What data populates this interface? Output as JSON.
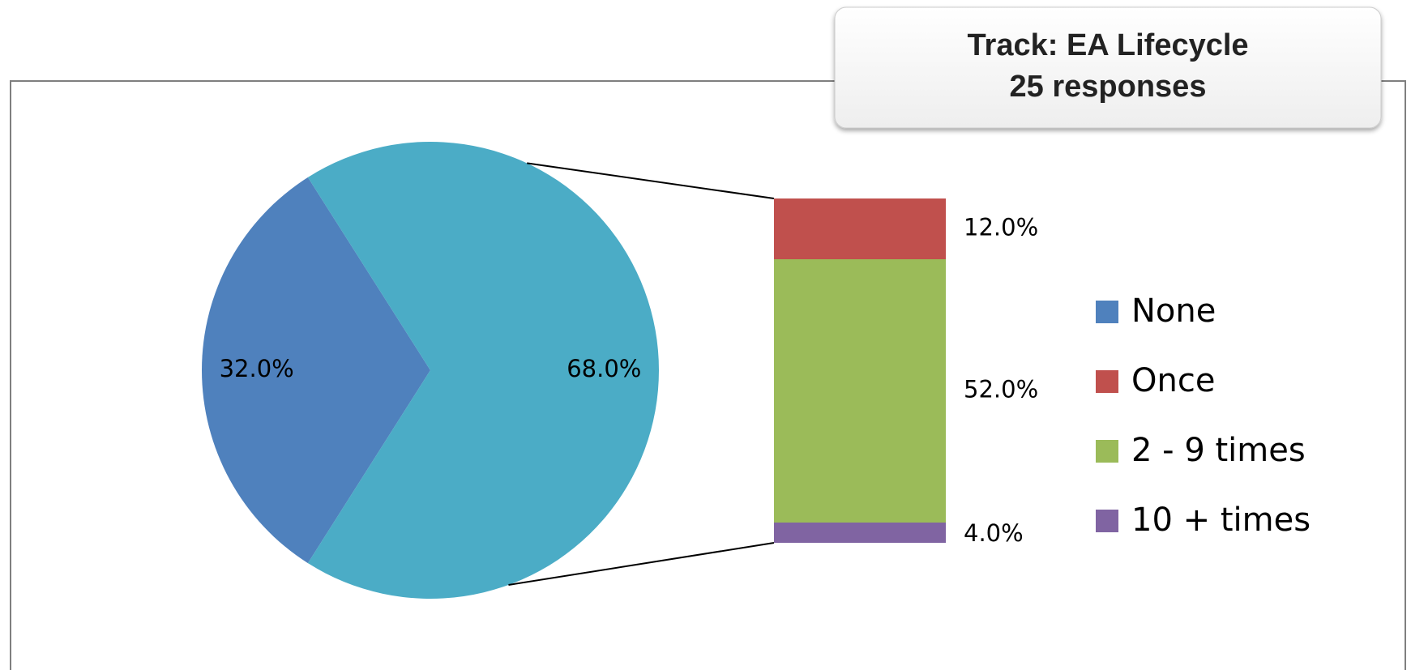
{
  "chart_data": {
    "type": "pie",
    "title": "Track: EA Lifecycle",
    "subtitle": "25 responses",
    "categories": [
      "None",
      "Once",
      "2 - 9 times",
      "10 + times"
    ],
    "values": [
      32.0,
      12.0,
      52.0,
      4.0
    ],
    "value_labels": [
      "32.0%",
      "12.0%",
      "52.0%",
      "4.0%"
    ],
    "colors": [
      "#4f81bd",
      "#c0504d",
      "#9bbb59",
      "#8064a2"
    ],
    "other_value": 68.0,
    "other_label": "68.0%",
    "other_color": "#4bacc6",
    "legend": "right"
  }
}
